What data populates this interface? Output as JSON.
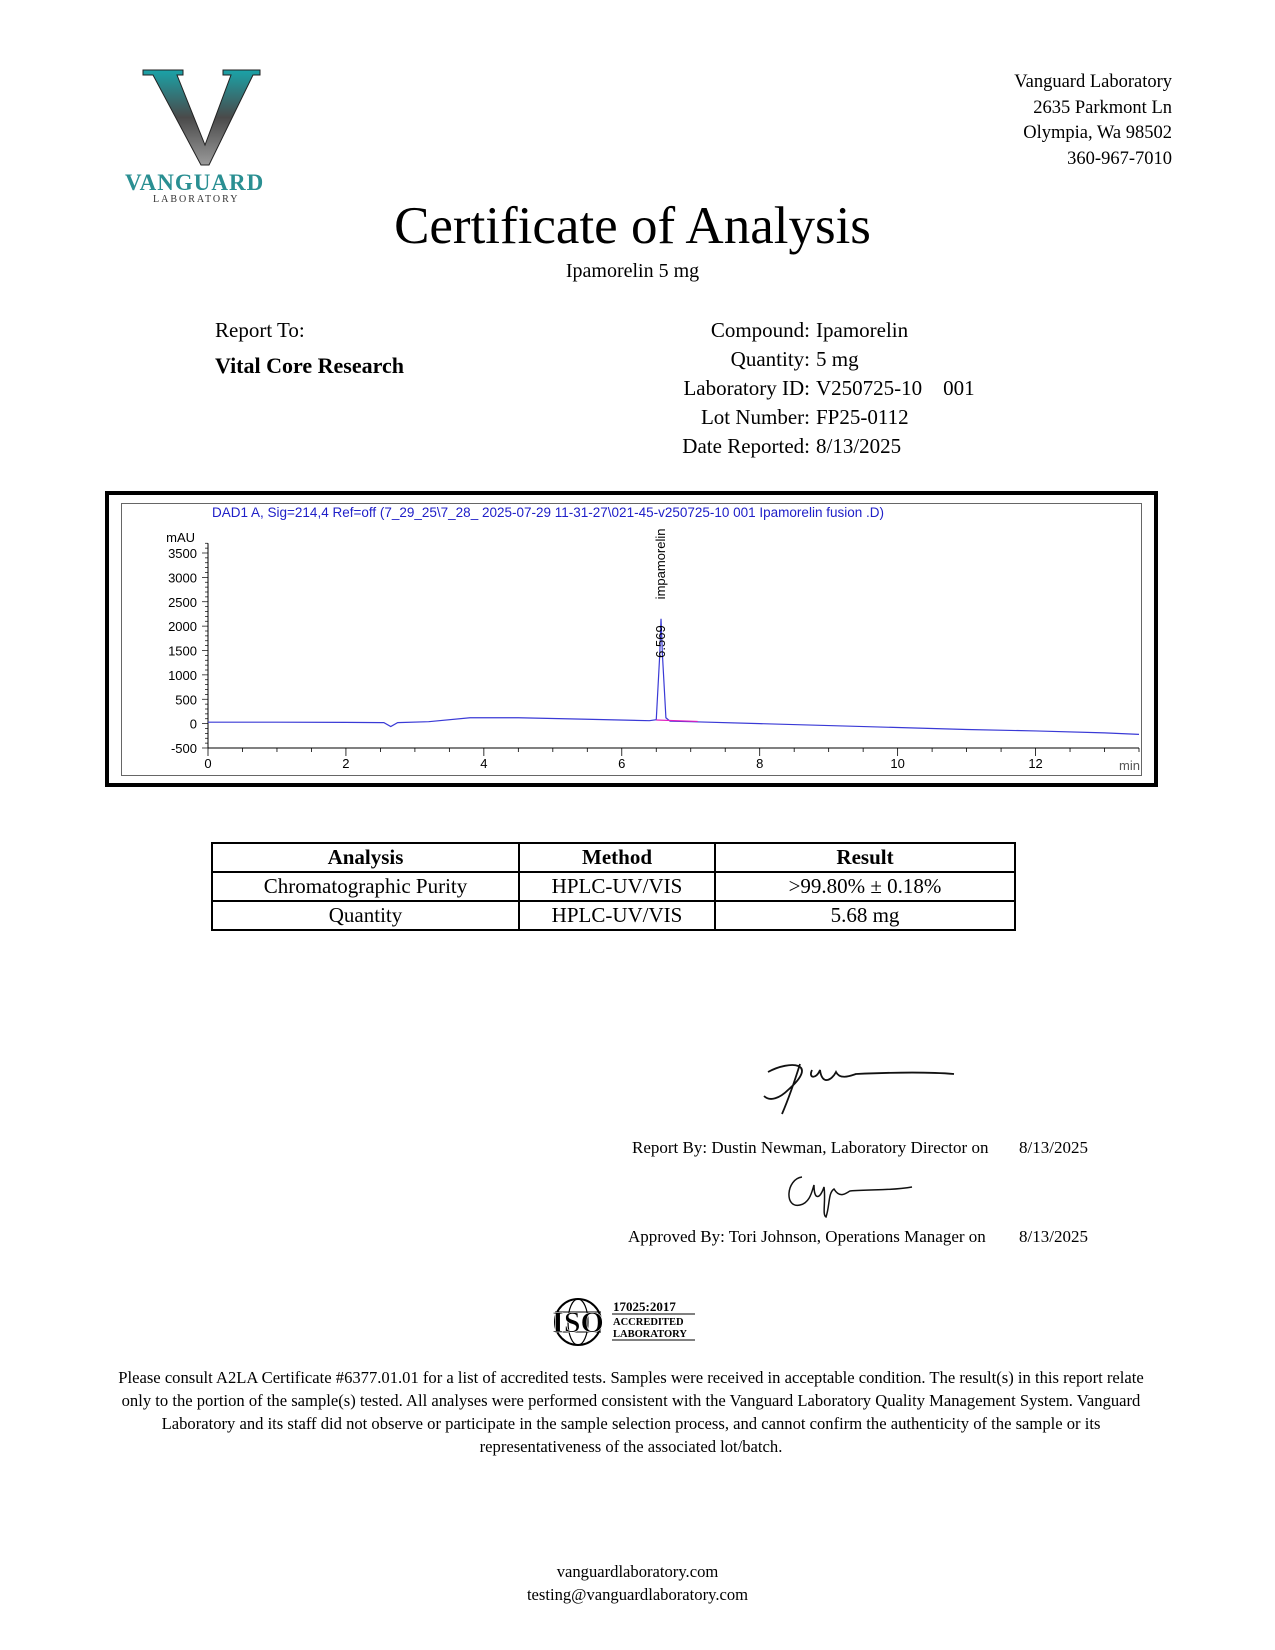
{
  "logo": {
    "brand": "VANGUARD",
    "sub": "LABORATORY",
    "colors": {
      "teal": "#1aa3a8",
      "grey": "#6b6b6b"
    }
  },
  "address": [
    "Vanguard Laboratory",
    "2635 Parkmont Ln",
    "Olympia, Wa 98502",
    "360-967-7010"
  ],
  "title": "Certificate of Analysis",
  "subtitle": "Ipamorelin 5 mg",
  "report_to": {
    "label": "Report To:",
    "client": "Vital Core Research"
  },
  "fields": [
    {
      "key": "Compound:",
      "value": "Ipamorelin"
    },
    {
      "key": "Quantity:",
      "value": "5 mg"
    },
    {
      "key": "Laboratory ID:",
      "value": "V250725-10    001"
    },
    {
      "key": "Lot Number:",
      "value": "FP25-0112"
    },
    {
      "key": "Date Reported:",
      "value": "8/13/2025"
    }
  ],
  "chart_data": {
    "type": "line",
    "title": "DAD1 A, Sig=214,4 Ref=off (7_29_25\\7_28_ 2025-07-29 11-31-27\\021-45-v250725-10 001 Ipamorelin fusion .D)",
    "xlabel": "min",
    "ylabel": "mAU",
    "xlim": [
      0,
      13.5
    ],
    "ylim": [
      -500,
      3700
    ],
    "xticks": [
      "0",
      "2",
      "4",
      "6",
      "8",
      "10",
      "12"
    ],
    "yticks": [
      "3500",
      "3000",
      "2500",
      "2000",
      "1500",
      "1000",
      "500",
      "0",
      "-500"
    ],
    "peak": {
      "retention_time": "6.569",
      "name": "impamorelin",
      "height": 2150
    },
    "series": [
      {
        "color": "#3a3ad6",
        "x": [
          0,
          1,
          2,
          2.55,
          2.65,
          2.75,
          3.2,
          3.8,
          4.5,
          5.5,
          6.4,
          6.5,
          6.55,
          6.569,
          6.59,
          6.64,
          6.7,
          7,
          8,
          9,
          10,
          11,
          12,
          13,
          13.5
        ],
        "y": [
          30,
          30,
          25,
          20,
          -60,
          20,
          40,
          120,
          120,
          90,
          60,
          80,
          1400,
          2150,
          1400,
          120,
          50,
          40,
          0,
          -40,
          -80,
          -120,
          -150,
          -190,
          -220
        ]
      }
    ]
  },
  "table": {
    "headers": [
      "Analysis",
      "Method",
      "Result"
    ],
    "rows": [
      [
        "Chromatographic Purity",
        "HPLC-UV/VIS",
        ">99.80% ± 0.18%"
      ],
      [
        "Quantity",
        "HPLC-UV/VIS",
        "5.68 mg"
      ]
    ]
  },
  "signatures": {
    "report_by": "Report By: Dustin Newman, Laboratory Director on",
    "report_date": "8/13/2025",
    "approved_by": "Approved By: Tori Johnson, Operations Manager on",
    "approved_date": "8/13/2025"
  },
  "iso": {
    "mark": "ISO",
    "standard": "17025:2017",
    "line1": "ACCREDITED",
    "line2": "LABORATORY"
  },
  "disclaimer": "Please consult A2LA Certificate #6377.01.01 for a list of accredited tests. Samples were received in acceptable condition. The result(s) in this report relate only to the portion of the sample(s) tested. All analyses were performed consistent with the Vanguard Laboratory Quality Management System. Vanguard Laboratory and its staff did not observe or participate in the sample selection process, and cannot confirm the authenticity of the sample or its representativeness of the associated lot/batch.",
  "footer": {
    "website": "vanguardlaboratory.com",
    "email": "testing@vanguardlaboratory.com"
  }
}
